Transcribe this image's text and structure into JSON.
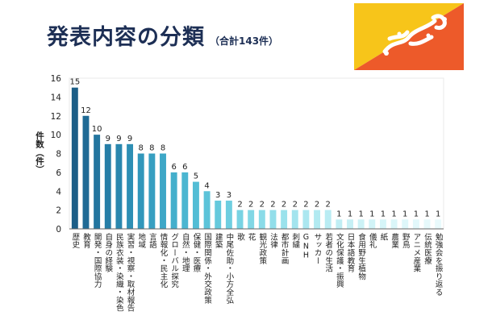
{
  "title": "発表内容の分類",
  "subtitle": "（合計143件）",
  "chart_data": {
    "type": "bar",
    "title": "発表内容の分類",
    "subtitle": "（合計143件）",
    "ylabel": "件数（件）",
    "xlabel": "",
    "ylim": [
      0,
      16
    ],
    "yticks": [
      0,
      2,
      4,
      6,
      8,
      10,
      12,
      14,
      16
    ],
    "grid": false,
    "legend": "none",
    "categories": [
      "歴史",
      "教育",
      "開発・国際協力",
      "自身の経験",
      "民族衣装・染織・染色",
      "実習・視察・取材報告",
      "地域",
      "言語",
      "情報化・民主化",
      "グローバル探究",
      "自然・地理",
      "保健・医療",
      "国際関係・外交政策",
      "建築",
      "中尾佐助・小方全弘",
      "歌",
      "花",
      "観光政策",
      "法律",
      "都市計画",
      "刺繍",
      "GNH",
      "サッカー",
      "若者の生活",
      "文化保護・振興",
      "日本語教育",
      "食用野生植物",
      "儀礼",
      "紙",
      "農業",
      "野鳥",
      "アニメ産業",
      "伝統医療",
      "勉強会を振り返る"
    ],
    "values": [
      15,
      12,
      10,
      9,
      9,
      9,
      8,
      8,
      8,
      6,
      6,
      5,
      4,
      3,
      3,
      2,
      2,
      2,
      2,
      2,
      2,
      2,
      2,
      2,
      1,
      1,
      1,
      1,
      1,
      1,
      1,
      1,
      1,
      1
    ],
    "colors": [
      "#1c5e87",
      "#1f6a95",
      "#23759f",
      "#267ea7",
      "#2a87ae",
      "#2e8fb4",
      "#3297bb",
      "#379fc1",
      "#3da7c7",
      "#44afcc",
      "#4bb6d1",
      "#53bdd5",
      "#5cc3d9",
      "#65c9dc",
      "#6ecee0",
      "#78d3e3",
      "#81d7e5",
      "#8adbe8",
      "#92deea",
      "#9be2ec",
      "#a3e4ee",
      "#abe7f0",
      "#b2eaf1",
      "#b9ecf3",
      "#c0eef4",
      "#c6f0f5",
      "#ccf2f6",
      "#d1f3f7",
      "#d6f5f8",
      "#daf6f9",
      "#def7fa",
      "#e2f8fb",
      "#e6f9fb",
      "#e9fafc"
    ]
  },
  "flag": {
    "yellow": "#f7c51a",
    "orange": "#ed5a2a",
    "dragon": "#ffffff",
    "icon": "dragon-flag-icon"
  }
}
